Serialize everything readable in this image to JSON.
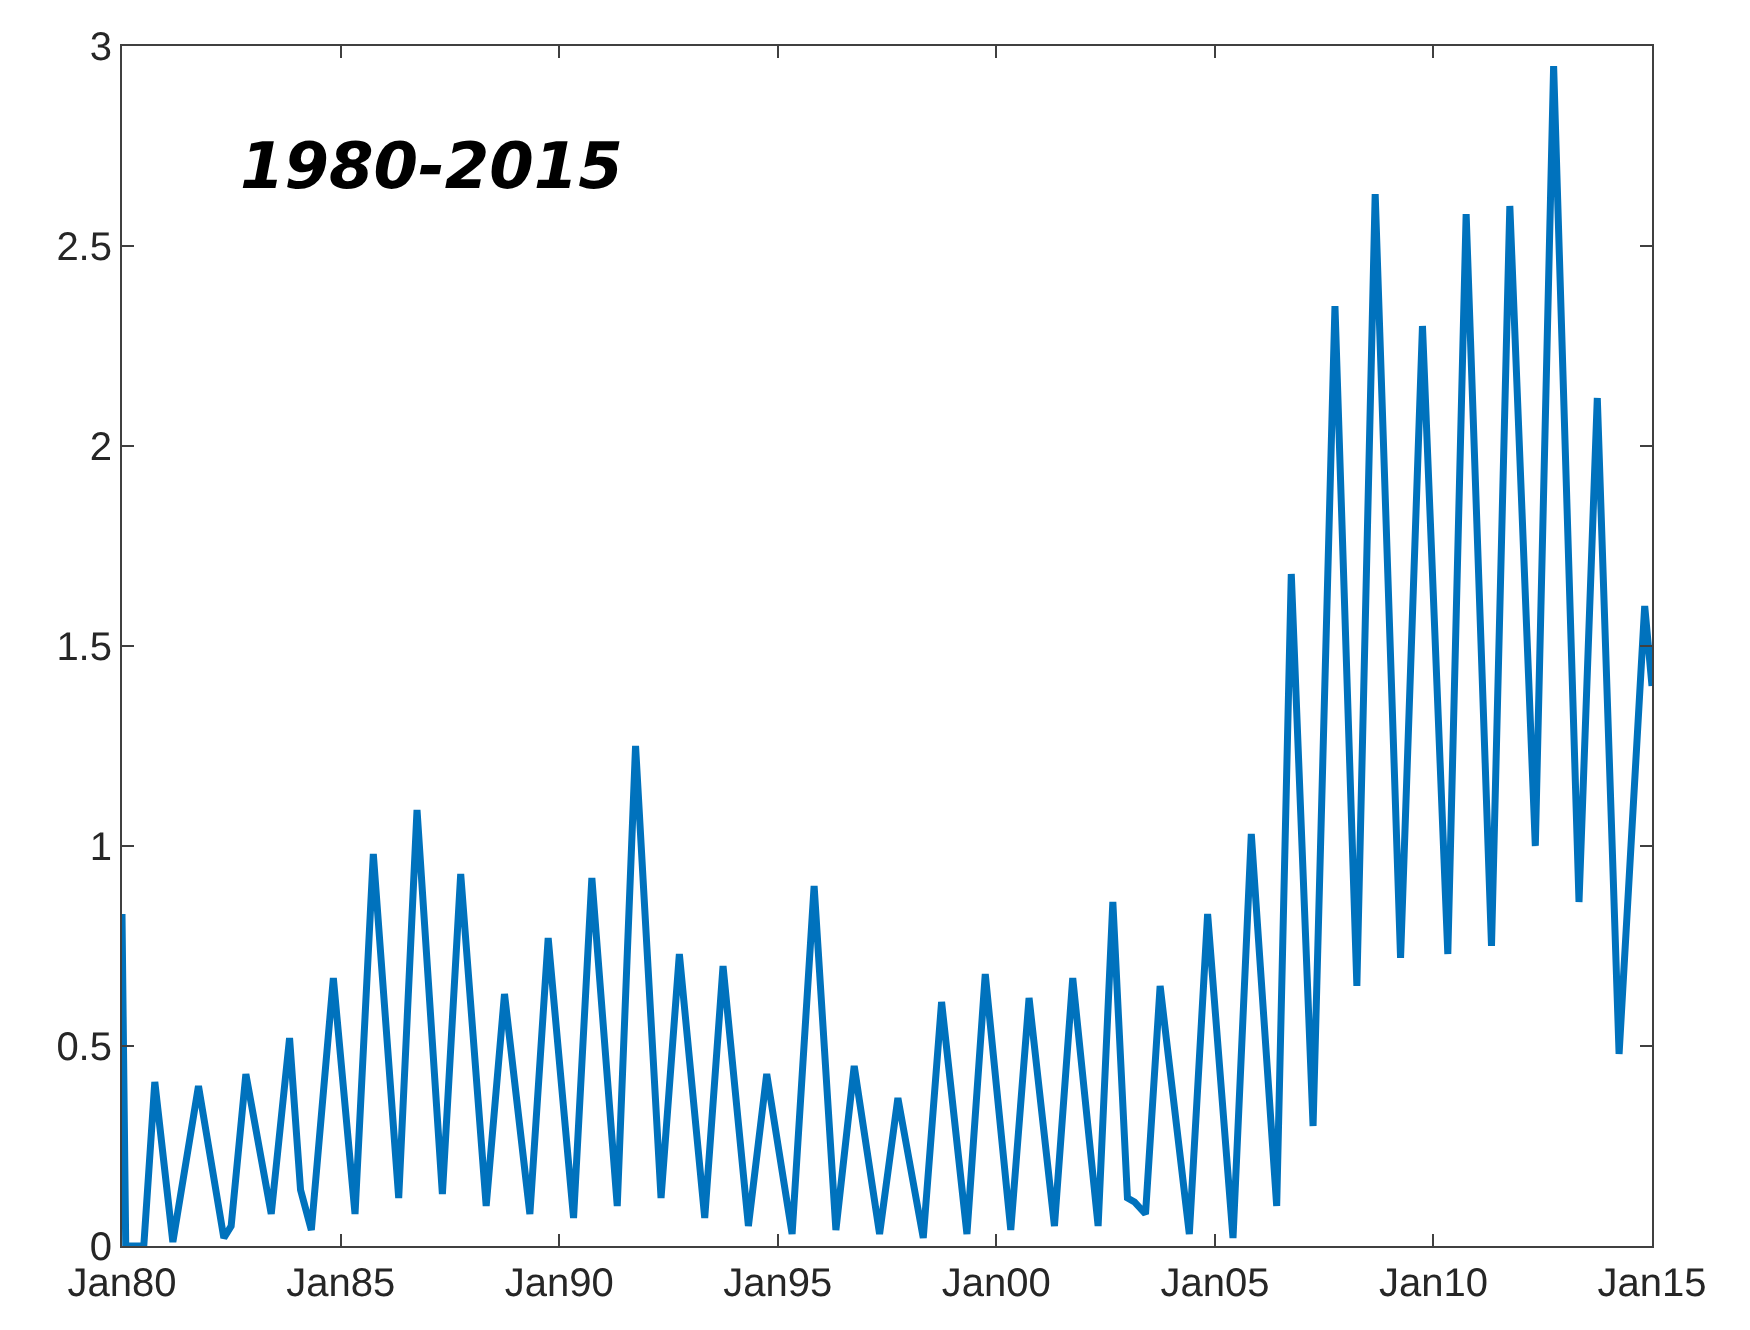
{
  "chart_data": {
    "type": "line",
    "annotations": [
      "1980-2015"
    ],
    "x": [
      "1980-01",
      "1980-02",
      "1980-07",
      "1980-10",
      "1981-03",
      "1981-10",
      "1982-05",
      "1982-07",
      "1982-11",
      "1983-06",
      "1983-11",
      "1984-02",
      "1984-05",
      "1984-11",
      "1985-05",
      "1985-10",
      "1986-05",
      "1986-10",
      "1987-05",
      "1987-10",
      "1988-05",
      "1988-10",
      "1989-05",
      "1989-10",
      "1990-05",
      "1990-10",
      "1991-05",
      "1991-10",
      "1992-05",
      "1992-10",
      "1993-05",
      "1993-10",
      "1994-05",
      "1994-10",
      "1995-05",
      "1995-11",
      "1996-05",
      "1996-10",
      "1997-05",
      "1997-10",
      "1998-05",
      "1998-10",
      "1999-05",
      "1999-10",
      "2000-05",
      "2000-10",
      "2001-05",
      "2001-10",
      "2002-05",
      "2002-09",
      "2003-01",
      "2003-03",
      "2003-06",
      "2003-10",
      "2004-06",
      "2004-11",
      "2005-06",
      "2005-11",
      "2006-06",
      "2006-10",
      "2007-04",
      "2007-10",
      "2008-04",
      "2008-09",
      "2009-04",
      "2009-10",
      "2010-05",
      "2010-10",
      "2011-05",
      "2011-10",
      "2012-05",
      "2012-10",
      "2013-05",
      "2013-10",
      "2014-04",
      "2014-11",
      "2015-01"
    ],
    "series": [
      {
        "color": "#0072bd",
        "values": [
          0.83,
          0,
          0,
          0.41,
          0.01,
          0.4,
          0.02,
          0.05,
          0.43,
          0.08,
          0.52,
          0.14,
          0.04,
          0.67,
          0.08,
          0.98,
          0.12,
          1.09,
          0.13,
          0.93,
          0.1,
          0.63,
          0.08,
          0.77,
          0.07,
          0.92,
          0.1,
          1.25,
          0.12,
          0.73,
          0.07,
          0.7,
          0.05,
          0.43,
          0.03,
          0.9,
          0.04,
          0.45,
          0.03,
          0.37,
          0.02,
          0.61,
          0.03,
          0.68,
          0.04,
          0.62,
          0.05,
          0.67,
          0.05,
          0.86,
          0.12,
          0.11,
          0.08,
          0.65,
          0.03,
          0.83,
          0.02,
          1.03,
          0.1,
          1.68,
          0.3,
          2.35,
          0.65,
          2.63,
          0.72,
          2.3,
          0.73,
          2.58,
          0.75,
          2.6,
          1.0,
          2.95,
          0.86,
          2.12,
          0.48,
          1.6,
          1.4
        ]
      }
    ],
    "xlim": [
      "1980-01",
      "2015-01"
    ],
    "xticks": [
      {
        "value": "1980-01",
        "label": "Jan80"
      },
      {
        "value": "1985-01",
        "label": "Jan85"
      },
      {
        "value": "1990-01",
        "label": "Jan90"
      },
      {
        "value": "1995-01",
        "label": "Jan95"
      },
      {
        "value": "2000-01",
        "label": "Jan00"
      },
      {
        "value": "2005-01",
        "label": "Jan05"
      },
      {
        "value": "2010-01",
        "label": "Jan10"
      },
      {
        "value": "2015-01",
        "label": "Jan15"
      }
    ],
    "ylim": [
      0,
      3
    ],
    "yticks": [
      0,
      0.5,
      1,
      1.5,
      2,
      2.5,
      3
    ],
    "marker": "none",
    "line_style": "solid"
  }
}
